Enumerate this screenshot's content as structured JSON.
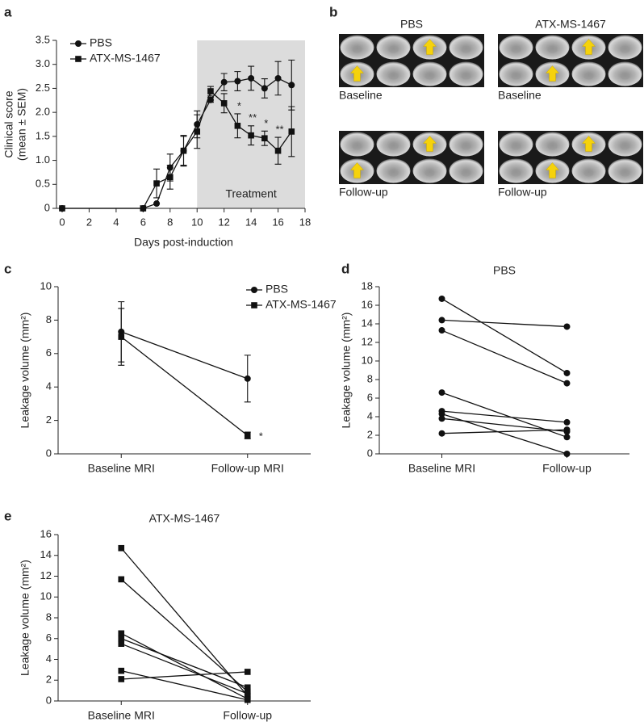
{
  "chart_data": [
    {
      "type": "line",
      "panel": "a",
      "x": [
        0,
        6,
        7,
        8,
        9,
        10,
        11,
        12,
        13,
        14,
        15,
        16,
        17
      ],
      "xlabel": "Days post-induction",
      "ylabel": [
        "Clinical score",
        "(mean ± SEM)"
      ],
      "xlim": [
        0,
        18
      ],
      "xticks": [
        0,
        2,
        4,
        6,
        8,
        10,
        12,
        14,
        16,
        18
      ],
      "ylim": [
        0,
        3.5
      ],
      "yticks": [
        0,
        0.5,
        {
          "value": 1,
          "label": "1.0"
        },
        1.5,
        {
          "value": 2,
          "label": "2.0"
        },
        2.5,
        {
          "value": 3,
          "label": "3.0"
        },
        3.5
      ],
      "legend": "upper left",
      "shade": {
        "xlim": [
          10,
          18
        ],
        "label": "Treatment",
        "color": "#dcdcdc"
      },
      "series": [
        {
          "name": "PBS",
          "marker": "circle",
          "color": "#111111",
          "values": [
            0,
            0,
            0.1,
            0.85,
            1.2,
            1.75,
            2.26,
            2.63,
            2.65,
            2.71,
            2.5,
            2.71,
            2.57
          ],
          "errors": [
            0,
            0,
            0,
            0.28,
            0.3,
            0.28,
            0.05,
            0.18,
            0.2,
            0.25,
            0.2,
            0.35,
            0.52
          ]
        },
        {
          "name": "ATX-MS-1467",
          "marker": "square",
          "color": "#111111",
          "values": [
            0,
            0,
            0.52,
            0.65,
            1.2,
            1.6,
            2.44,
            2.19,
            1.72,
            1.52,
            1.46,
            1.2,
            1.6
          ],
          "errors": [
            0,
            0,
            0.3,
            0.25,
            0.32,
            0.35,
            0.1,
            0.2,
            0.25,
            0.2,
            0.15,
            0.28,
            0.52
          ],
          "significance": [
            null,
            null,
            null,
            null,
            null,
            null,
            null,
            null,
            "*",
            "**",
            "*",
            "**",
            null
          ]
        }
      ]
    },
    {
      "type": "image",
      "panel": "b",
      "columns": [
        "PBS",
        "ATX-MS-1467"
      ],
      "rows": [
        "Baseline",
        "Follow-up"
      ]
    },
    {
      "type": "line",
      "panel": "c",
      "categories": [
        "Baseline MRI",
        "Follow-up MRI"
      ],
      "ylabel": "Leakage volume (mm²)",
      "ylim": [
        0,
        10
      ],
      "yticks": [
        0,
        2,
        4,
        6,
        8,
        10
      ],
      "legend": "upper right",
      "series": [
        {
          "name": "PBS",
          "marker": "circle",
          "color": "#111111",
          "values": [
            7.3,
            4.5
          ],
          "errors": [
            1.8,
            1.4
          ]
        },
        {
          "name": "ATX-MS-1467",
          "marker": "square",
          "color": "#111111",
          "values": [
            7.0,
            1.1
          ],
          "errors": [
            1.7,
            0.2
          ],
          "significance": [
            null,
            "*"
          ]
        }
      ]
    },
    {
      "type": "paired",
      "panel": "d",
      "title": "PBS",
      "categories": [
        "Baseline MRI",
        "Follow-up"
      ],
      "ylabel": "Leakage volume (mm²)",
      "ylim": [
        0,
        18
      ],
      "yticks": [
        0,
        2,
        4,
        6,
        8,
        10,
        12,
        14,
        16,
        18
      ],
      "marker": "circle",
      "color": "#111111",
      "pairs": [
        [
          16.7,
          8.7
        ],
        [
          14.4,
          13.7
        ],
        [
          13.3,
          7.6
        ],
        [
          6.6,
          1.8
        ],
        [
          4.6,
          3.4
        ],
        [
          4.3,
          0
        ],
        [
          3.8,
          2.4
        ],
        [
          2.2,
          2.6
        ]
      ]
    },
    {
      "type": "paired",
      "panel": "e",
      "title": "ATX-MS-1467",
      "categories": [
        "Baseline MRI",
        "Follow-up"
      ],
      "ylabel": "Leakage volume (mm²)",
      "ylim": [
        0,
        16
      ],
      "yticks": [
        0,
        2,
        4,
        6,
        8,
        10,
        12,
        14,
        16
      ],
      "marker": "square",
      "color": "#111111",
      "pairs": [
        [
          14.7,
          0.5
        ],
        [
          11.7,
          0.9
        ],
        [
          6.5,
          0.2
        ],
        [
          6.0,
          1.3
        ],
        [
          5.5,
          0.7
        ],
        [
          2.9,
          0.1
        ],
        [
          2.1,
          2.8
        ]
      ]
    }
  ]
}
